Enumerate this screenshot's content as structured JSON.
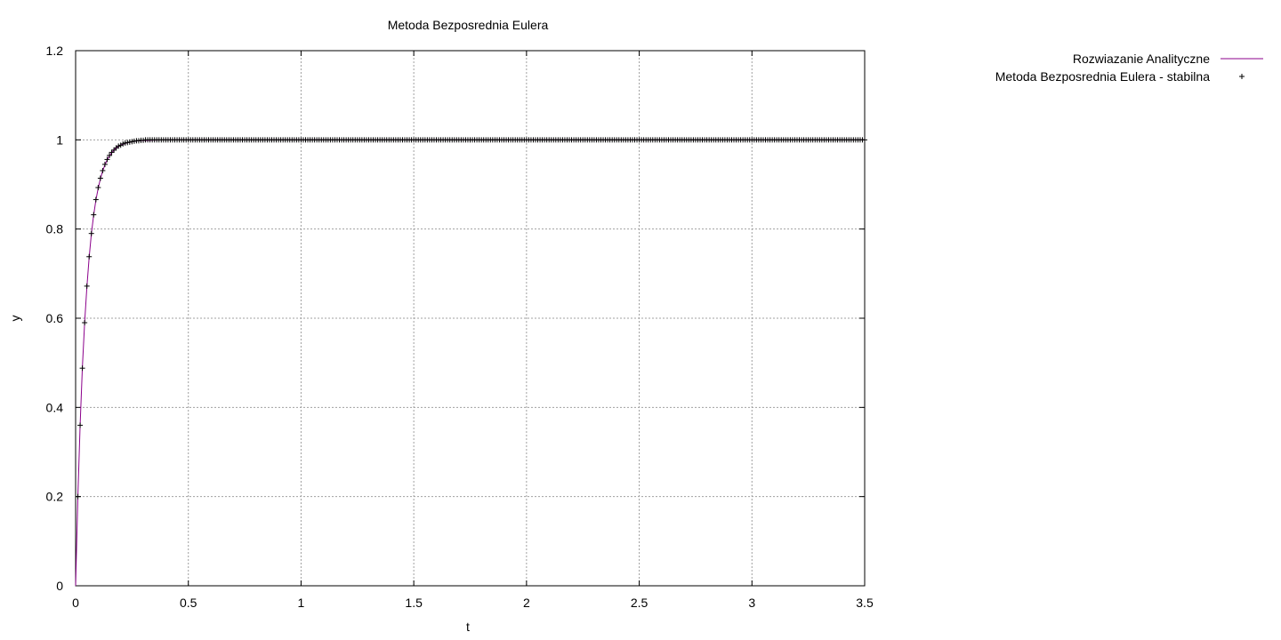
{
  "chart_data": {
    "type": "line",
    "title": "Metoda Bezposrednia Eulera",
    "xlabel": "t",
    "ylabel": "y",
    "xlim": [
      0,
      3.5
    ],
    "ylim": [
      0,
      1.2
    ],
    "xticks": [
      0,
      0.5,
      1,
      1.5,
      2,
      2.5,
      3,
      3.5
    ],
    "xtick_labels": [
      "0",
      "0.5",
      "1",
      "1.5",
      "2",
      "2.5",
      "3",
      "3.5"
    ],
    "yticks": [
      0,
      0.2,
      0.4,
      0.6,
      0.8,
      1,
      1.2
    ],
    "ytick_labels": [
      "0",
      "0.2",
      "0.4",
      "0.6",
      "0.8",
      "1",
      "1.2"
    ],
    "grid": true,
    "legend_position": "top-right, outside plot",
    "series": [
      {
        "name": "Rozwiazanie Analityczne",
        "style": "line",
        "color": "#8b008b",
        "x": [
          0,
          0.01,
          0.02,
          0.03,
          0.04,
          0.05,
          0.06,
          0.07,
          0.08,
          0.09,
          0.1,
          0.11,
          0.12,
          0.13,
          0.14,
          0.15,
          0.16,
          0.17,
          0.18,
          0.19,
          0.2,
          0.22,
          0.24,
          0.26,
          0.28,
          0.3,
          0.35,
          0.4,
          0.5,
          0.7,
          1.0,
          1.5,
          2.0,
          2.5,
          3.0,
          3.5
        ],
        "y": [
          0,
          0.2,
          0.36,
          0.49,
          0.59,
          0.67,
          0.736,
          0.79,
          0.831,
          0.865,
          0.891,
          0.913,
          0.93,
          0.944,
          0.955,
          0.964,
          0.971,
          0.977,
          0.982,
          0.985,
          0.988,
          0.992,
          0.995,
          0.997,
          0.998,
          0.9985,
          0.9994,
          0.9998,
          1,
          1,
          1,
          1,
          1,
          1,
          1,
          1
        ]
      },
      {
        "name": "Metoda Bezposrednia Eulera - stabilna",
        "style": "points",
        "marker": "+",
        "color": "#000000",
        "x": [
          0.01,
          0.02,
          0.03,
          0.04,
          0.05,
          0.06,
          0.07,
          0.08,
          0.09,
          0.1,
          0.11,
          0.12,
          0.13,
          0.14,
          0.15,
          0.16,
          0.17,
          0.18,
          0.19,
          0.2,
          0.21,
          0.22,
          0.23,
          0.24,
          0.25,
          0.26,
          0.27,
          0.28,
          0.29,
          0.3
        ],
        "y": [
          0.2,
          0.36,
          0.488,
          0.59,
          0.672,
          0.738,
          0.79,
          0.832,
          0.866,
          0.893,
          0.914,
          0.931,
          0.945,
          0.956,
          0.965,
          0.972,
          0.977,
          0.982,
          0.986,
          0.988,
          0.991,
          0.993,
          0.994,
          0.995,
          0.996,
          0.997,
          0.998,
          0.998,
          0.999,
          0.999
        ],
        "x_step_after": 0.01,
        "y_after": 1,
        "x_end": 3.5
      }
    ]
  }
}
